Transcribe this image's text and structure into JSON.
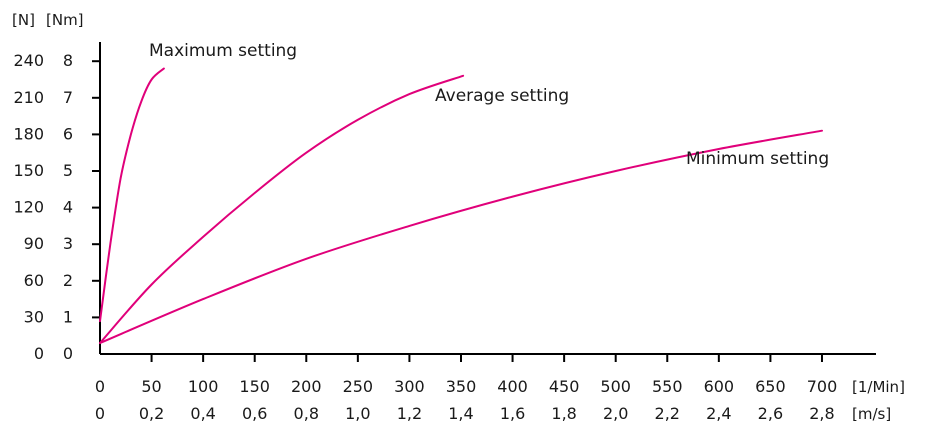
{
  "chart_data": {
    "type": "line",
    "x_unit_primary": "[1/Min]",
    "x_unit_secondary": "[m/s]",
    "y_unit_left": "[N]",
    "y_unit_right": "[Nm]",
    "x_ticks": [
      "0",
      "50",
      "100",
      "150",
      "200",
      "250",
      "300",
      "350",
      "400",
      "450",
      "500",
      "550",
      "600",
      "650",
      "700"
    ],
    "x_ticks_secondary": [
      "0",
      "0,2",
      "0,4",
      "0,6",
      "0,8",
      "1,0",
      "1,2",
      "1,4",
      "1,6",
      "1,8",
      "2,0",
      "2,2",
      "2,4",
      "2,6",
      "2,8"
    ],
    "y_ticks_left": [
      "0",
      "30",
      "60",
      "90",
      "120",
      "150",
      "180",
      "210",
      "240"
    ],
    "y_ticks_right": [
      "0",
      "1",
      "2",
      "3",
      "4",
      "5",
      "6",
      "7",
      "8"
    ],
    "xlim": [
      0,
      750
    ],
    "ylim": [
      0,
      8
    ],
    "series": [
      {
        "name": "Maximum setting",
        "color": "#e0007a",
        "points": [
          [
            0,
            0.9
          ],
          [
            10,
            3.0
          ],
          [
            20,
            4.8
          ],
          [
            30,
            6.0
          ],
          [
            40,
            6.9
          ],
          [
            50,
            7.5
          ],
          [
            62,
            7.8
          ]
        ]
      },
      {
        "name": "Average setting",
        "color": "#e0007a",
        "points": [
          [
            0,
            0.3
          ],
          [
            50,
            1.9
          ],
          [
            100,
            3.2
          ],
          [
            150,
            4.4
          ],
          [
            200,
            5.5
          ],
          [
            250,
            6.4
          ],
          [
            300,
            7.1
          ],
          [
            352,
            7.6
          ]
        ]
      },
      {
        "name": "Minimum setting",
        "color": "#e0007a",
        "points": [
          [
            0,
            0.3
          ],
          [
            100,
            1.5
          ],
          [
            200,
            2.6
          ],
          [
            300,
            3.5
          ],
          [
            400,
            4.3
          ],
          [
            500,
            5.0
          ],
          [
            600,
            5.6
          ],
          [
            700,
            6.1
          ]
        ]
      }
    ]
  }
}
